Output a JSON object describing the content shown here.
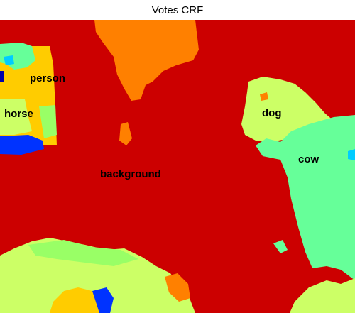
{
  "figure": {
    "title": "Votes CRF",
    "labels": {
      "person": "person",
      "horse": "horse",
      "dog": "dog",
      "cow": "cow",
      "background": "background"
    }
  },
  "colors": {
    "background": "#cc0000",
    "orange": "#ff8000",
    "yellow": "#ffcc00",
    "lime": "#ccff66",
    "light_green": "#99ff66",
    "mint": "#66ff99",
    "cyan": "#00ccff",
    "blue": "#0033ff",
    "navy": "#0000aa"
  }
}
